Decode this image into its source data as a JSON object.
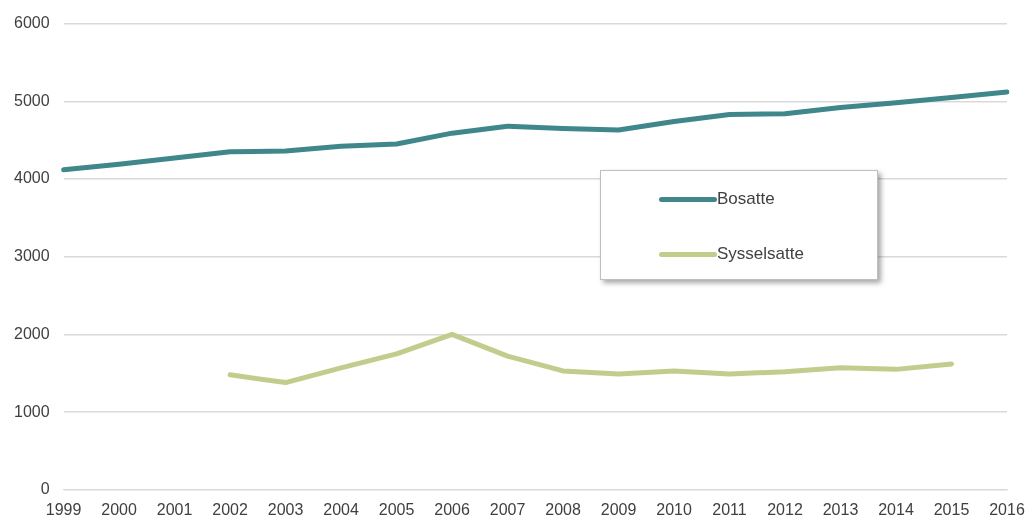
{
  "chart_data": {
    "type": "line",
    "categories": [
      "1999",
      "2000",
      "2001",
      "2002",
      "2003",
      "2004",
      "2005",
      "2006",
      "2007",
      "2008",
      "2009",
      "2010",
      "2011",
      "2012",
      "2013",
      "2014",
      "2015",
      "2016"
    ],
    "series": [
      {
        "name": "Bosatte",
        "color": "#3f878b",
        "values": [
          4120,
          4190,
          4270,
          4350,
          4360,
          4420,
          4450,
          4590,
          4680,
          4650,
          4630,
          4740,
          4830,
          4840,
          4920,
          4980,
          5050,
          5120
        ]
      },
      {
        "name": "Sysselsatte",
        "color": "#c3cc8c",
        "values": [
          null,
          null,
          null,
          1480,
          1380,
          1570,
          1750,
          2000,
          1720,
          1530,
          1490,
          1530,
          1490,
          1520,
          1570,
          1550,
          1620,
          null
        ]
      }
    ],
    "ylim": [
      0,
      6000
    ],
    "yticks": [
      0,
      1000,
      2000,
      3000,
      4000,
      5000,
      6000
    ],
    "grid": "y",
    "legend": "right",
    "marker": "none",
    "line_style": "solid"
  }
}
